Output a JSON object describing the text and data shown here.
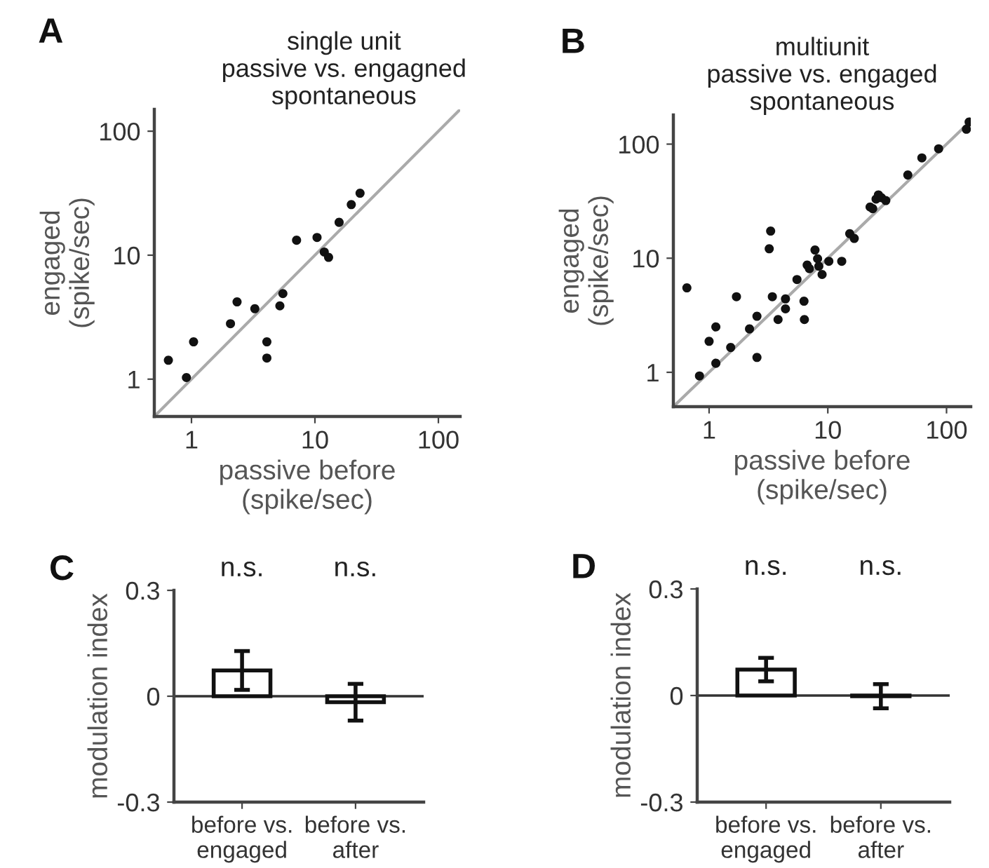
{
  "chart_data": [
    {
      "type": "scatter",
      "title": "single unit\npassive vs. engagned\nspontaneous",
      "xlabel": "passive before\n(spike/sec)",
      "ylabel": "engaged\n(spike/sec)",
      "log": "xy",
      "xlim": [
        0.5,
        150
      ],
      "ylim": [
        0.5,
        150
      ],
      "xticks": [
        1,
        10,
        100
      ],
      "yticks": [
        1,
        10,
        100
      ],
      "grid": false,
      "annotations": [
        "A"
      ],
      "series": [
        {
          "type": "scatter",
          "marker": "circle",
          "color": "#111111",
          "x": [
            0.65,
            0.91,
            1.04,
            2.07,
            2.34,
            3.26,
            4.08,
            4.08,
            5.2,
            5.5,
            7.1,
            10.4,
            11.9,
            12.9,
            15.7,
            19.7,
            23.2
          ],
          "values": [
            1.42,
            1.03,
            2.0,
            2.8,
            4.2,
            3.7,
            2.0,
            1.48,
            3.9,
            4.9,
            13.2,
            13.9,
            10.6,
            9.6,
            18.4,
            25.6,
            31.6
          ]
        },
        {
          "type": "line",
          "marker": "none",
          "color": "#aaaaaa",
          "x": [
            0.5,
            150
          ],
          "values": [
            0.5,
            150
          ]
        }
      ]
    },
    {
      "type": "scatter",
      "title": "multiunit\npassive vs. engaged\nspontaneous",
      "xlabel": "passive before\n(spike/sec)",
      "ylabel": "engaged\n(spike/sec)",
      "log": "xy",
      "xlim": [
        0.5,
        160
      ],
      "ylim": [
        0.5,
        180
      ],
      "xticks": [
        1,
        10,
        100
      ],
      "yticks": [
        1,
        10,
        100
      ],
      "grid": false,
      "annotations": [
        "B"
      ],
      "series": [
        {
          "type": "scatter",
          "marker": "circle",
          "color": "#111111",
          "x": [
            0.65,
            0.83,
            1.0,
            1.14,
            1.14,
            1.52,
            1.7,
            2.19,
            2.53,
            2.53,
            3.3,
            3.21,
            3.41,
            3.81,
            4.4,
            4.4,
            5.5,
            6.3,
            6.35,
            6.7,
            7.0,
            7.8,
            8.2,
            8.95,
            8.4,
            10.2,
            13.1,
            15.3,
            16.7,
            22.7,
            23.9,
            25.5,
            26.7,
            28.3,
            30.8,
            47.2,
            62,
            85.8,
            147,
            155
          ],
          "values": [
            5.5,
            0.93,
            1.87,
            2.5,
            1.2,
            1.65,
            4.6,
            2.4,
            3.1,
            1.35,
            17.3,
            12.1,
            4.6,
            2.9,
            3.6,
            4.4,
            6.5,
            4.2,
            2.9,
            8.7,
            8.1,
            11.8,
            9.9,
            7.2,
            8.5,
            9.4,
            9.4,
            16.4,
            14.9,
            28.1,
            27.2,
            33,
            35.9,
            33.9,
            32,
            53.6,
            75.7,
            91,
            135,
            156
          ]
        },
        {
          "type": "line",
          "marker": "none",
          "color": "#aaaaaa",
          "x": [
            0.5,
            160
          ],
          "values": [
            0.5,
            160
          ]
        }
      ]
    },
    {
      "type": "bar",
      "ylabel": "modulation index",
      "categories": [
        "before vs.\nengaged",
        "before vs.\nafter"
      ],
      "values": [
        0.073,
        -0.017
      ],
      "errors": [
        0.055,
        0.052
      ],
      "color": "#ffffff",
      "ylim": [
        -0.3,
        0.3
      ],
      "yticks": [
        {
          "value": -0.3,
          "label": "-0.3"
        },
        0,
        0.3
      ],
      "ref_lines": [
        {
          "axis": "y",
          "value": 0
        }
      ],
      "grid": false,
      "annotations": [
        "C",
        "n.s.",
        "n.s."
      ]
    },
    {
      "type": "bar",
      "ylabel": "modulation index",
      "categories": [
        "before vs.\nengaged",
        "before vs.\nafter"
      ],
      "values": [
        0.073,
        -0.002
      ],
      "errors": [
        0.033,
        0.034
      ],
      "color": "#ffffff",
      "ylim": [
        -0.3,
        0.3
      ],
      "yticks": [
        {
          "value": -0.3,
          "label": "-0.3"
        },
        0,
        0.3
      ],
      "ref_lines": [
        {
          "axis": "y",
          "value": 0
        }
      ],
      "grid": false,
      "annotations": [
        "D",
        "n.s.",
        "n.s."
      ]
    }
  ]
}
